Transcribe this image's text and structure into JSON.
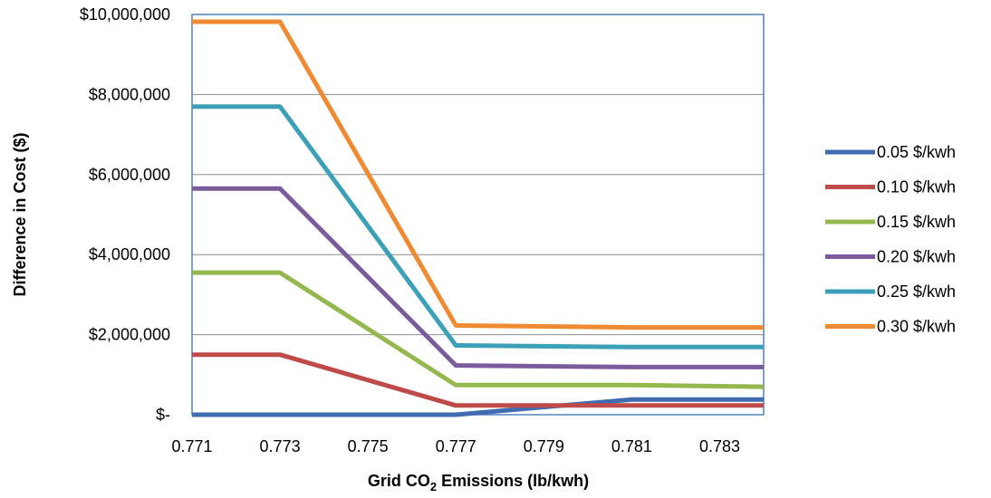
{
  "chart_data": {
    "type": "line",
    "title": "",
    "xlabel": {
      "prefix": "Grid CO",
      "sub": "2",
      "suffix": " Emissions (lb/kwh)"
    },
    "ylabel": "Difference in Cost ($)",
    "x": [
      0.771,
      0.773,
      0.777,
      0.781,
      0.784
    ],
    "xlim": [
      0.771,
      0.784
    ],
    "xticks": [
      0.771,
      0.773,
      0.775,
      0.777,
      0.779,
      0.781,
      0.783
    ],
    "xtick_labels": [
      "0.771",
      "0.773",
      "0.775",
      "0.777",
      "0.779",
      "0.781",
      "0.783"
    ],
    "ylim": [
      0,
      10000000
    ],
    "yticks": [
      0,
      2000000,
      4000000,
      6000000,
      8000000,
      10000000
    ],
    "ytick_labels": [
      "$-",
      "$2,000,000",
      "$4,000,000",
      "$6,000,000",
      "$8,000,000",
      "$10,000,000"
    ],
    "grid": "horizontal",
    "legend_position": "right",
    "series": [
      {
        "name": "0.05 $/kwh",
        "color": "#3F6BB0",
        "values": [
          0,
          0,
          0,
          380000,
          380000
        ]
      },
      {
        "name": "0.10 $/kwh",
        "color": "#BE4B48",
        "values": [
          1500000,
          1500000,
          230000,
          230000,
          230000
        ]
      },
      {
        "name": "0.15 $/kwh",
        "color": "#94B84E",
        "values": [
          3550000,
          3550000,
          740000,
          740000,
          700000
        ]
      },
      {
        "name": "0.20 $/kwh",
        "color": "#7A5B9C",
        "values": [
          5650000,
          5650000,
          1230000,
          1190000,
          1190000
        ]
      },
      {
        "name": "0.25 $/kwh",
        "color": "#3BA0B8",
        "values": [
          7700000,
          7700000,
          1730000,
          1690000,
          1690000
        ]
      },
      {
        "name": "0.30 $/kwh",
        "color": "#F08A32",
        "values": [
          9820000,
          9820000,
          2230000,
          2180000,
          2180000
        ]
      }
    ]
  }
}
